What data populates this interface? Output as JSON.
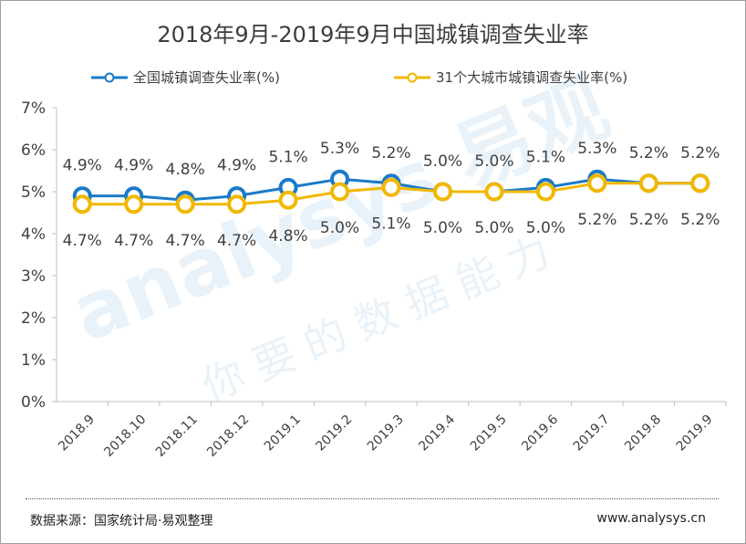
{
  "chart_data": {
    "type": "line",
    "title": "2018年9月-2019年9月中国城镇调查失业率",
    "categories": [
      "2018.9",
      "2018.10",
      "2018.11",
      "2018.12",
      "2019.1",
      "2019.2",
      "2019.3",
      "2019.4",
      "2019.5",
      "2019.6",
      "2019.7",
      "2019.8",
      "2019.9"
    ],
    "yticks": [
      "0%",
      "1%",
      "2%",
      "3%",
      "4%",
      "5%",
      "6%",
      "7%"
    ],
    "ylim": [
      0,
      7
    ],
    "grid": false,
    "legend_position": "top",
    "series": [
      {
        "name": "全国城镇调查失业率(%)",
        "color": "#1a7ac8",
        "values": [
          4.9,
          4.9,
          4.8,
          4.9,
          5.1,
          5.3,
          5.2,
          5.0,
          5.0,
          5.1,
          5.3,
          5.2,
          5.2
        ],
        "labels": [
          "4.9%",
          "4.9%",
          "4.8%",
          "4.9%",
          "5.1%",
          "5.3%",
          "5.2%",
          "5.0%",
          "5.0%",
          "5.1%",
          "5.3%",
          "5.2%",
          "5.2%"
        ]
      },
      {
        "name": "31个大城市城镇调查失业率(%)",
        "color": "#f2b800",
        "values": [
          4.7,
          4.7,
          4.7,
          4.7,
          4.8,
          5.0,
          5.1,
          5.0,
          5.0,
          5.0,
          5.2,
          5.2,
          5.2
        ],
        "labels": [
          "4.7%",
          "4.7%",
          "4.7%",
          "4.7%",
          "4.8%",
          "5.0%",
          "5.1%",
          "5.0%",
          "5.0%",
          "5.0%",
          "5.2%",
          "5.2%",
          "5.2%"
        ]
      }
    ]
  },
  "footer": {
    "source": "数据来源：国家统计局·易观整理",
    "site": "www.analysys.cn"
  },
  "watermark": {
    "brand": "analysys 易观",
    "slogan": "你要的数据能力"
  }
}
